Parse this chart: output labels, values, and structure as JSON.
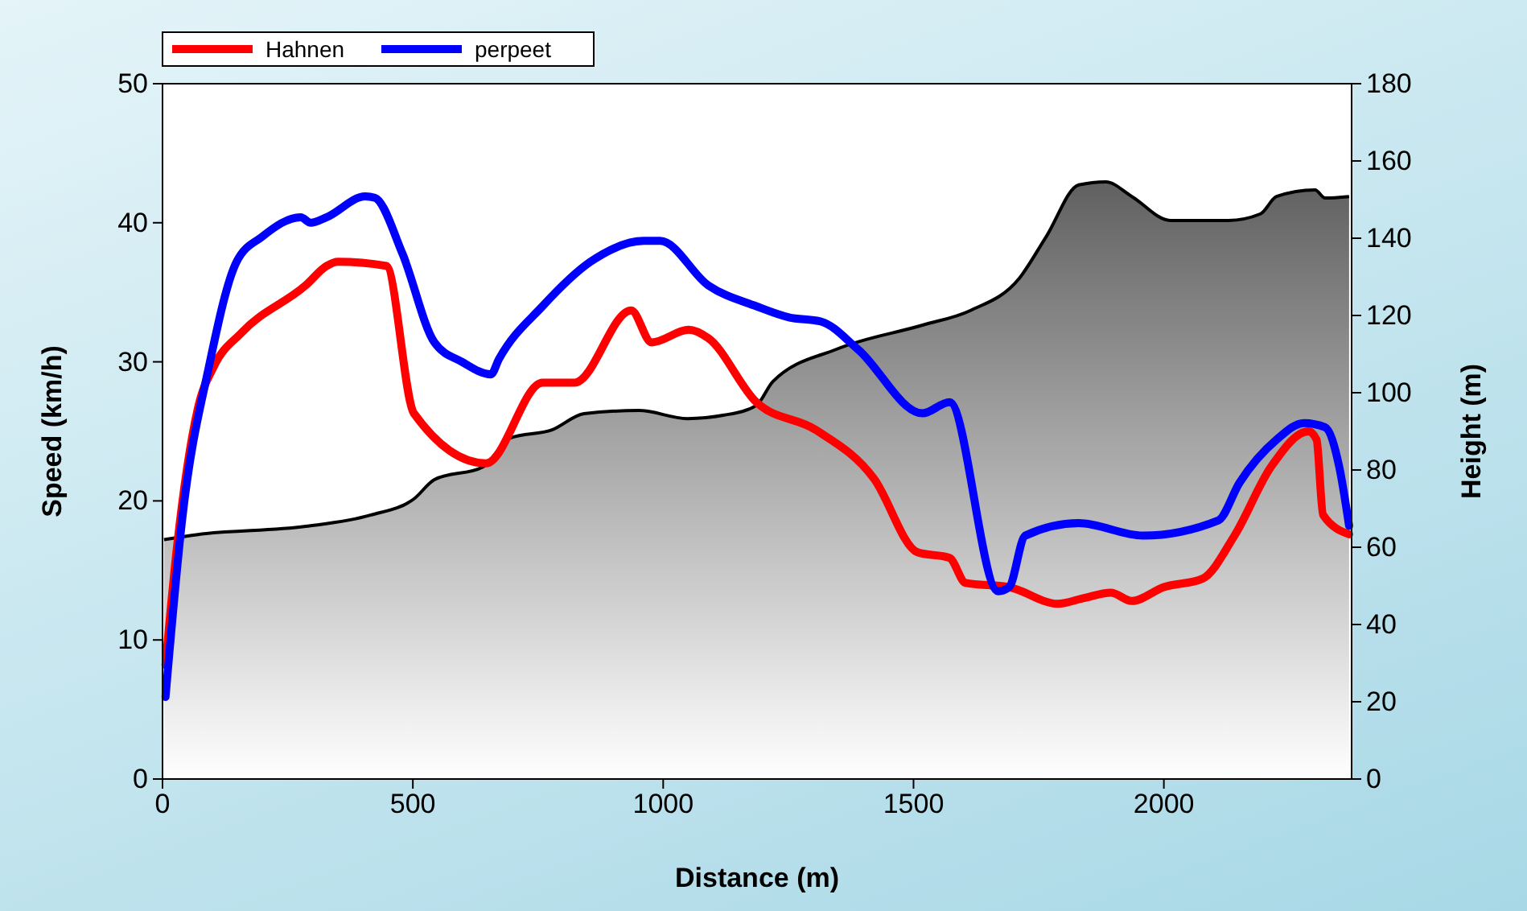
{
  "chart_data": {
    "type": "line",
    "xlabel": "Distance (m)",
    "ylabel": "Speed (km/h)",
    "y2label": "Height (m)",
    "xlim": [
      0,
      2375
    ],
    "xticks": [
      0,
      500,
      1000,
      1500,
      2000
    ],
    "ylim": [
      0,
      50
    ],
    "yticks": [
      0,
      10,
      20,
      30,
      40,
      50
    ],
    "y2lim": [
      0,
      180
    ],
    "y2ticks": [
      0,
      20,
      40,
      60,
      80,
      100,
      120,
      140,
      160,
      180
    ],
    "legend": "top left",
    "grid": false,
    "series": [
      {
        "type": "area",
        "axis": "y2",
        "color": "#606060",
        "x": [
          3,
          71,
          286,
          415,
          502,
          543,
          640,
          695,
          778,
          842,
          952,
          1048,
          1122,
          1186,
          1219,
          1347,
          1518,
          1614,
          1711,
          1765,
          1830,
          1884,
          1936,
          2013,
          2129,
          2193,
          2225,
          2302,
          2322,
          2370
        ],
        "values": [
          62,
          63.3,
          65.4,
          68.3,
          72.5,
          77.5,
          80.8,
          88.3,
          90.4,
          94.6,
          95.4,
          93.3,
          94.2,
          96.7,
          102.9,
          111.3,
          117.5,
          121.3,
          129.6,
          140.4,
          153.8,
          154.6,
          150.8,
          144.6,
          144.6,
          146.3,
          150.8,
          152.5,
          150.4,
          150.8
        ]
      },
      {
        "name": "Hahnen",
        "color": "#ff0000",
        "x": [
          6,
          29,
          71,
          103,
          158,
          286,
          328,
          350,
          447,
          502,
          646,
          759,
          823,
          936,
          977,
          1051,
          1090,
          1186,
          1305,
          1421,
          1508,
          1572,
          1604,
          1691,
          1788,
          1839,
          1894,
          1936,
          2000,
          2077,
          2141,
          2215,
          2289,
          2305,
          2318,
          2370
        ],
        "values": [
          8.2,
          16.7,
          26.7,
          29.7,
          32.1,
          35.5,
          36.9,
          37.2,
          36.9,
          26.3,
          22.7,
          28.5,
          28.5,
          33.7,
          31.4,
          32.3,
          31.7,
          27.1,
          25.1,
          21.6,
          16.3,
          15.9,
          14.1,
          13.8,
          12.6,
          13.0,
          13.4,
          12.8,
          13.8,
          14.4,
          17.5,
          22.5,
          25.0,
          24.4,
          19.0,
          17.6
        ]
      },
      {
        "name": "perpeet",
        "color": "#0000ff",
        "x": [
          6,
          39,
          93,
          148,
          199,
          276,
          296,
          328,
          405,
          424,
          479,
          543,
          598,
          656,
          672,
          759,
          855,
          961,
          994,
          1090,
          1186,
          1251,
          1315,
          1389,
          1518,
          1572,
          1669,
          1691,
          1723,
          1830,
          1958,
          2109,
          2151,
          2225,
          2280,
          2322,
          2350,
          2370
        ],
        "values": [
          5.9,
          18.6,
          29.7,
          37.2,
          39.0,
          40.4,
          40.0,
          40.4,
          41.9,
          41.8,
          37.8,
          31.4,
          30.0,
          29.1,
          30.2,
          34.0,
          37.2,
          38.7,
          38.7,
          35.5,
          34.0,
          33.2,
          32.9,
          30.9,
          26.3,
          27.1,
          13.5,
          13.8,
          17.5,
          18.4,
          17.5,
          18.6,
          21.3,
          24.4,
          25.6,
          25.3,
          22.5,
          18.2
        ]
      }
    ]
  }
}
